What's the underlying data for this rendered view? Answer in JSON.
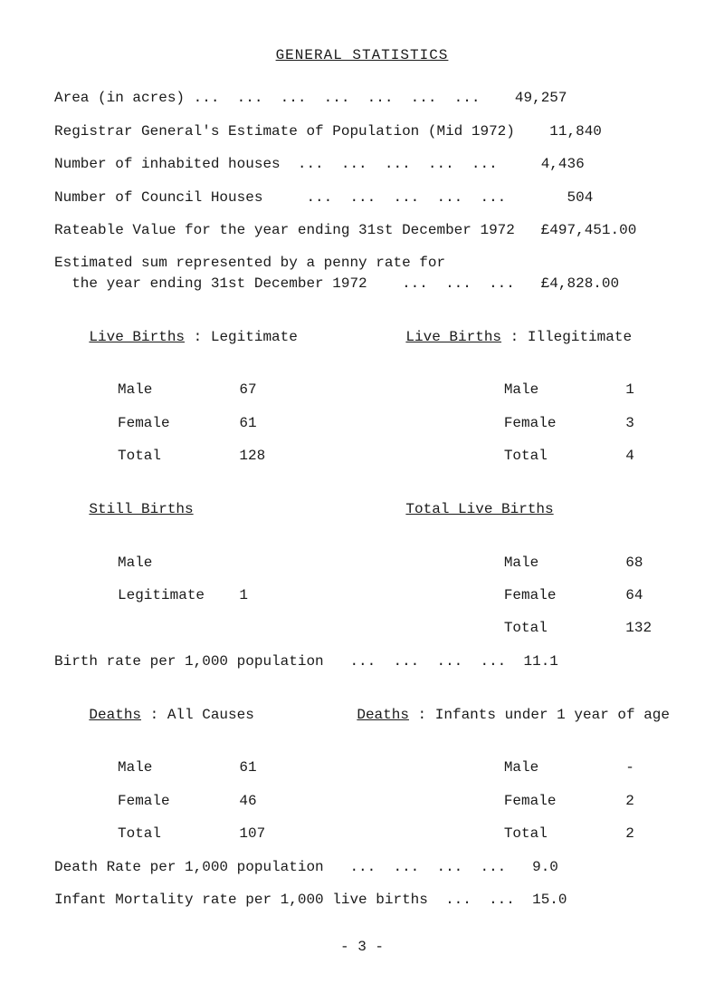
{
  "title": "GENERAL STATISTICS",
  "lines": {
    "area": "Area (in acres) ...  ...  ...  ...  ...  ...  ...    49,257",
    "registrar": "Registrar General's Estimate of Population (Mid 1972)    11,840",
    "inhabited": "Number of inhabited houses  ...  ...  ...  ...  ...     4,436",
    "council": "Number of Council Houses     ...  ...  ...  ...  ...       504",
    "rateable": "Rateable Value for the year ending 31st December 1972   £497,451.00",
    "estimated1": "Estimated sum represented by a penny rate for",
    "estimated2": "  the year ending 31st December 1972    ...  ...  ...   £4,828.00"
  },
  "liveBirths": {
    "leftHeader": "Live Births",
    "leftSep": " : Legitimate",
    "rightHeader": "Live Births",
    "rightSep": " : Illegitimate",
    "rows": [
      {
        "l1": "Male",
        "l2": "67",
        "r1": "Male",
        "r2": "1"
      },
      {
        "l1": "Female",
        "l2": "61",
        "r1": "Female",
        "r2": "3"
      },
      {
        "l1": "Total",
        "l2": "128",
        "r1": "Total",
        "r2": "4"
      }
    ]
  },
  "stillBirths": {
    "leftHeader": "Still Births",
    "rightHeader": "Total Live Births",
    "rows": [
      {
        "l1": "Male",
        "l2": "",
        "r1": "Male",
        "r2": "68"
      },
      {
        "l1": "Legitimate",
        "l2": "1",
        "r1": "Female",
        "r2": "64"
      },
      {
        "l1": "",
        "l2": "",
        "r1": "Total",
        "r2": "132"
      }
    ]
  },
  "birthRate": "Birth rate per 1,000 population   ...  ...  ...  ...  11.1",
  "deaths": {
    "leftHeader": "Deaths",
    "leftSep": " : All Causes",
    "rightHeader": "Deaths",
    "rightSep": " : Infants under 1 year of age",
    "rows": [
      {
        "l1": "Male",
        "l2": "61",
        "r1": "Male",
        "r2": "-"
      },
      {
        "l1": "Female",
        "l2": "46",
        "r1": "Female",
        "r2": "2"
      },
      {
        "l1": "Total",
        "l2": "107",
        "r1": "Total",
        "r2": "2"
      }
    ]
  },
  "deathRate": "Death Rate per 1,000 population   ...  ...  ...  ...   9.0",
  "infantMortality": "Infant Mortality rate per 1,000 live births  ...  ...  15.0",
  "pageFoot": "- 3 -"
}
